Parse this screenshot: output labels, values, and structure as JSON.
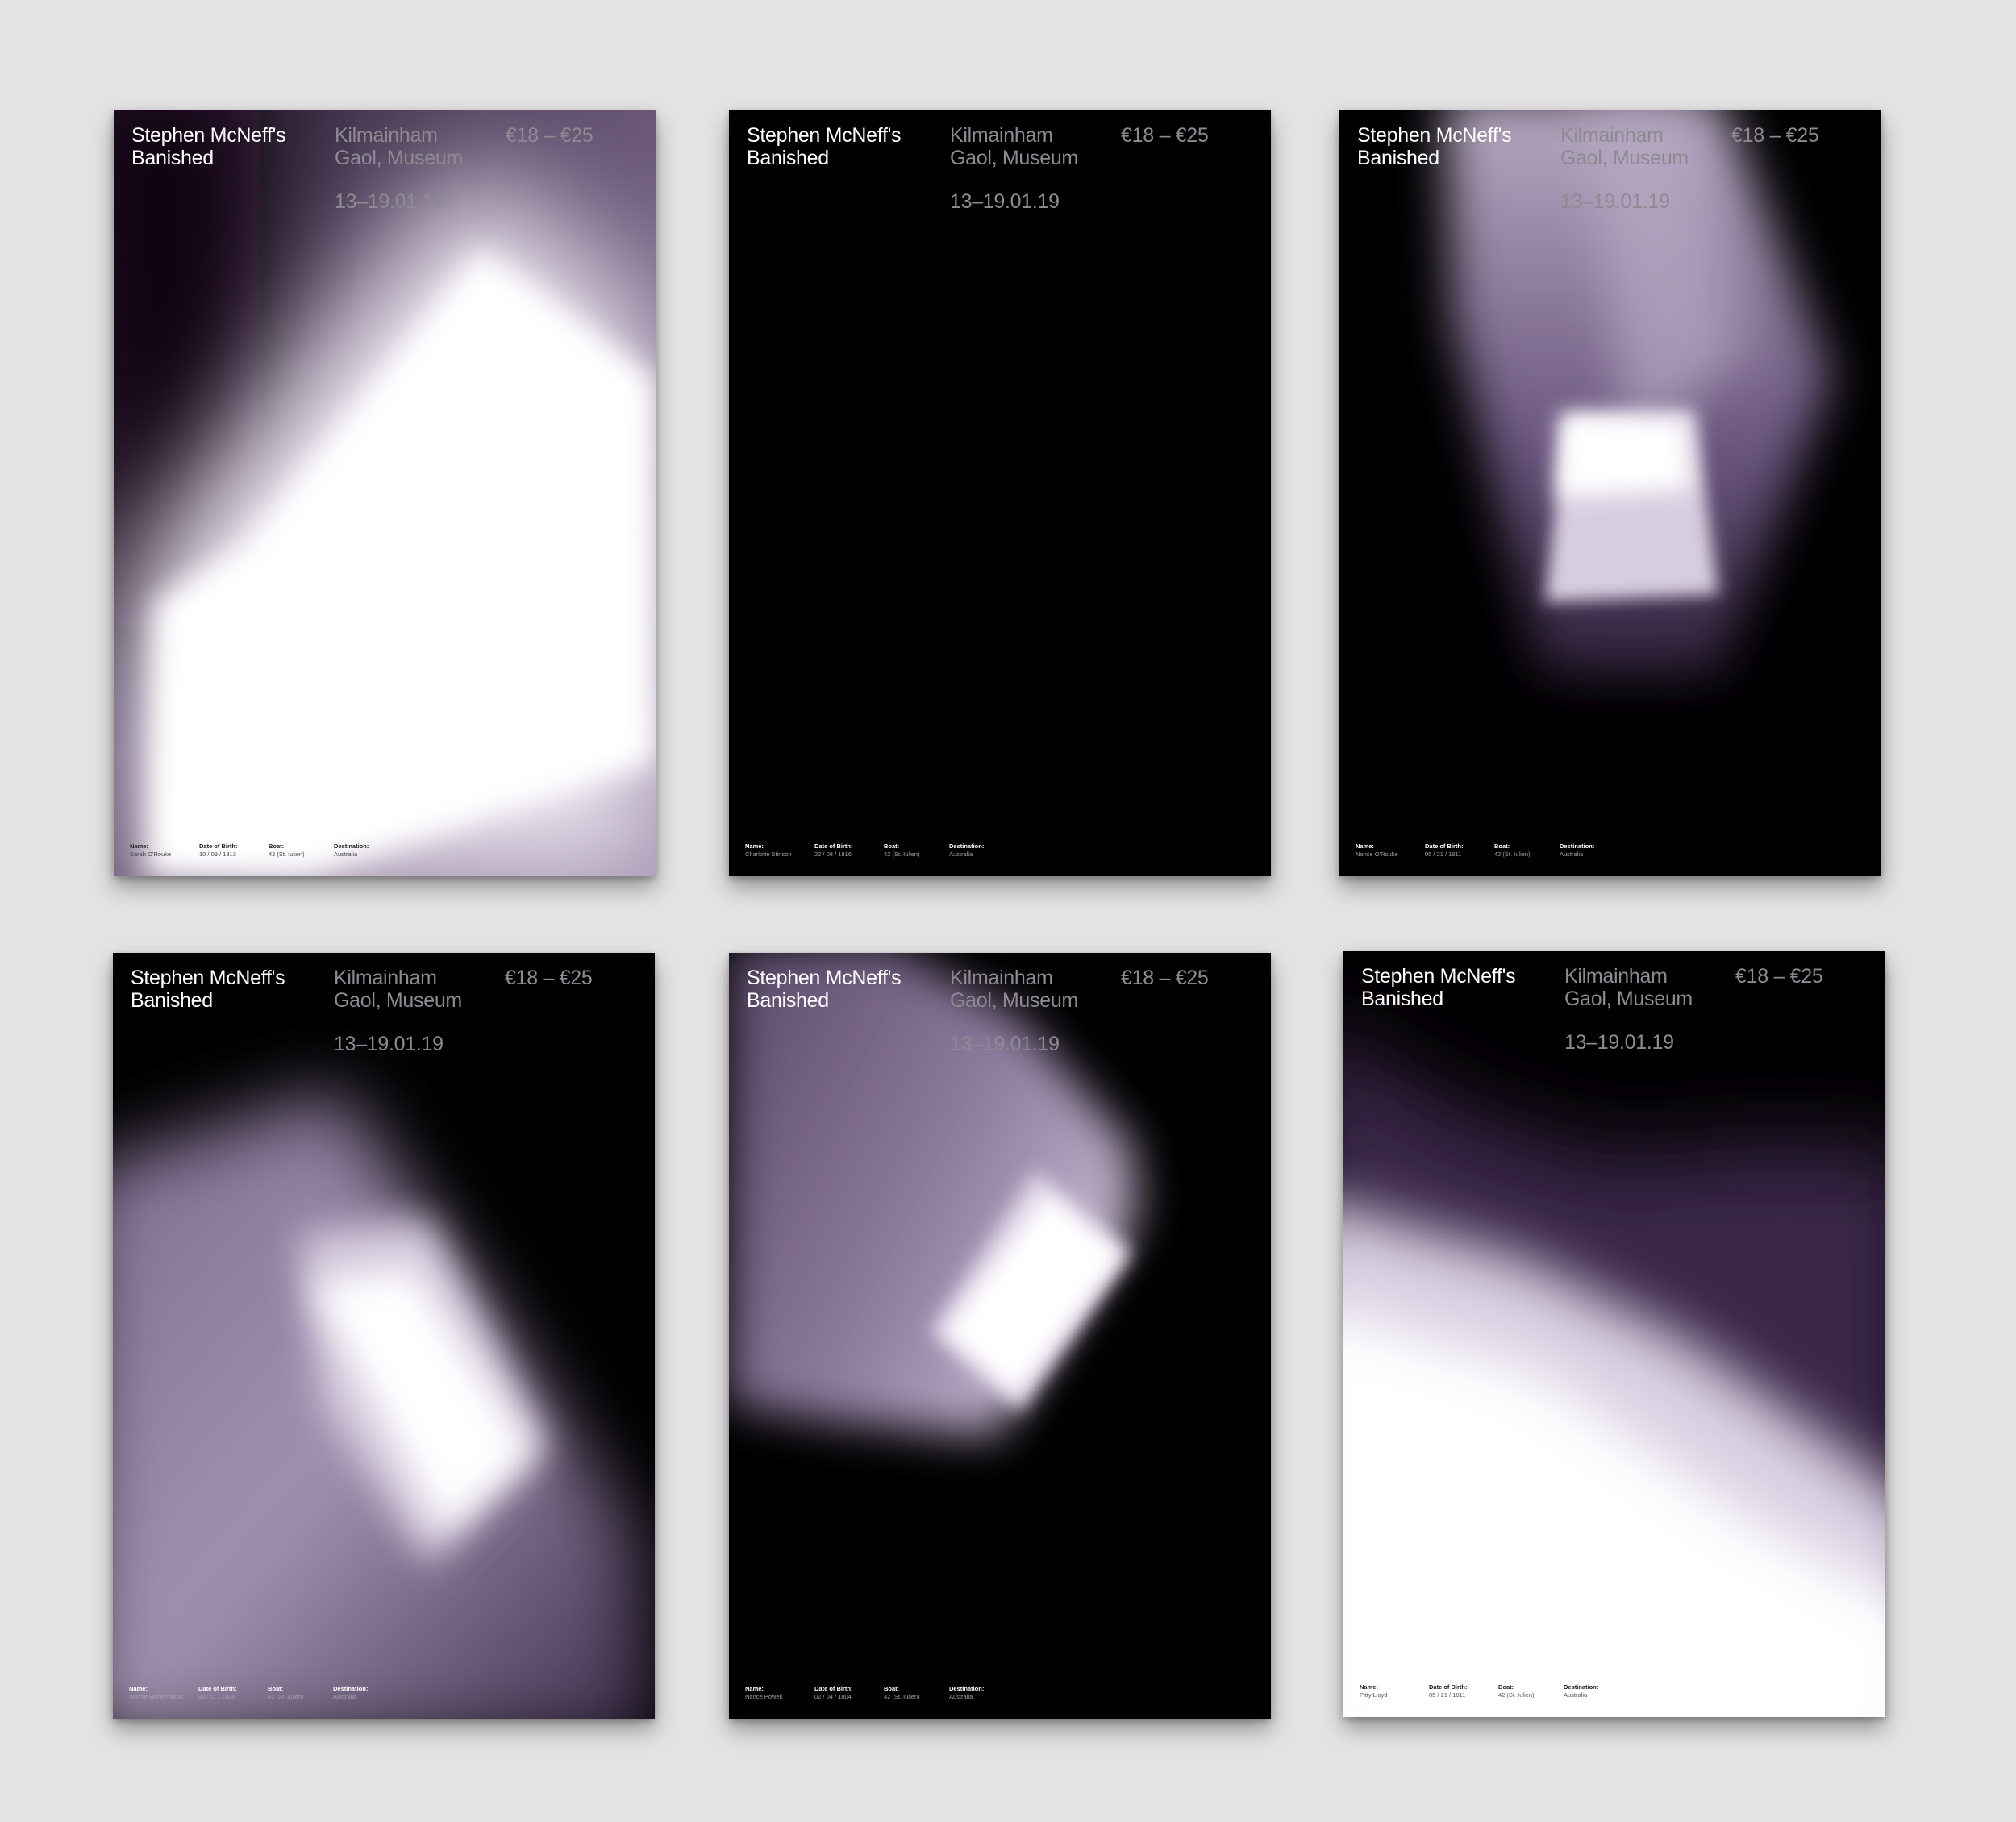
{
  "posters": [
    {
      "title_line1": "Stephen McNeff's",
      "title_line2": "Banished",
      "venue_line1": "Kilmainham",
      "venue_line2": "Gaol, Museum",
      "price": "€18 – €25",
      "dates": "13–19.01.19",
      "name_label": "Name:",
      "name": "Sarah O'Rouke",
      "dob_label": "Date of Birth:",
      "dob": "10 / 09 / 1813",
      "boat_label": "Boat:",
      "boat": "42 (St. Iulien)",
      "dest_label": "Destination:",
      "dest": "Australia"
    },
    {
      "title_line1": "Stephen McNeff's",
      "title_line2": "Banished",
      "venue_line1": "Kilmainham",
      "venue_line2": "Gaol, Museum",
      "price": "€18 – €25",
      "dates": "13–19.01.19",
      "name_label": "Name:",
      "name": "Charlotte Stinson",
      "dob_label": "Date of Birth:",
      "dob": "22 / 08 / 1816",
      "boat_label": "Boat:",
      "boat": "42 (St. Iulien)",
      "dest_label": "Destination:",
      "dest": "Australia"
    },
    {
      "title_line1": "Stephen McNeff's",
      "title_line2": "Banished",
      "venue_line1": "Kilmainham",
      "venue_line2": "Gaol, Museum",
      "price": "€18 – €25",
      "dates": "13–19.01.19",
      "name_label": "Name:",
      "name": "Nance O'Rouke",
      "dob_label": "Date of Birth:",
      "dob": "05 / 21 / 1811",
      "boat_label": "Boat:",
      "boat": "42 (St. Iulien)",
      "dest_label": "Destination:",
      "dest": "Australia"
    },
    {
      "title_line1": "Stephen McNeff's",
      "title_line2": "Banished",
      "venue_line1": "Kilmainham",
      "venue_line2": "Gaol, Museum",
      "price": "€18 – €25",
      "dates": "13–19.01.19",
      "name_label": "Name:",
      "name": "Winnie Witherington",
      "dob_label": "Date of Birth:",
      "dob": "30 / 11 / 1806",
      "boat_label": "Boat:",
      "boat": "42 (St. Iulien)",
      "dest_label": "Destination:",
      "dest": "Australia"
    },
    {
      "title_line1": "Stephen McNeff's",
      "title_line2": "Banished",
      "venue_line1": "Kilmainham",
      "venue_line2": "Gaol, Museum",
      "price": "€18 – €25",
      "dates": "13–19.01.19",
      "name_label": "Name:",
      "name": "Nance Powell",
      "dob_label": "Date of Birth:",
      "dob": "02 / 04 / 1804",
      "boat_label": "Boat:",
      "boat": "42 (St. Iulien)",
      "dest_label": "Destination:",
      "dest": "Australia"
    },
    {
      "title_line1": "Stephen McNeff's",
      "title_line2": "Banished",
      "venue_line1": "Kilmainham",
      "venue_line2": "Gaol, Museum",
      "price": "€18 – €25",
      "dates": "13–19.01.19",
      "name_label": "Name:",
      "name": "Pitty Lloyd",
      "dob_label": "Date of Birth:",
      "dob": "05 / 21 / 1811",
      "boat_label": "Boat:",
      "boat": "42 (St. Iulien)",
      "dest_label": "Destination:",
      "dest": "Australia"
    }
  ],
  "colors": {
    "background": "#e4e3e4",
    "poster": "#000000",
    "purple": "#4a3556",
    "light": "#ffffff",
    "muted_text": "#8e8a92"
  }
}
